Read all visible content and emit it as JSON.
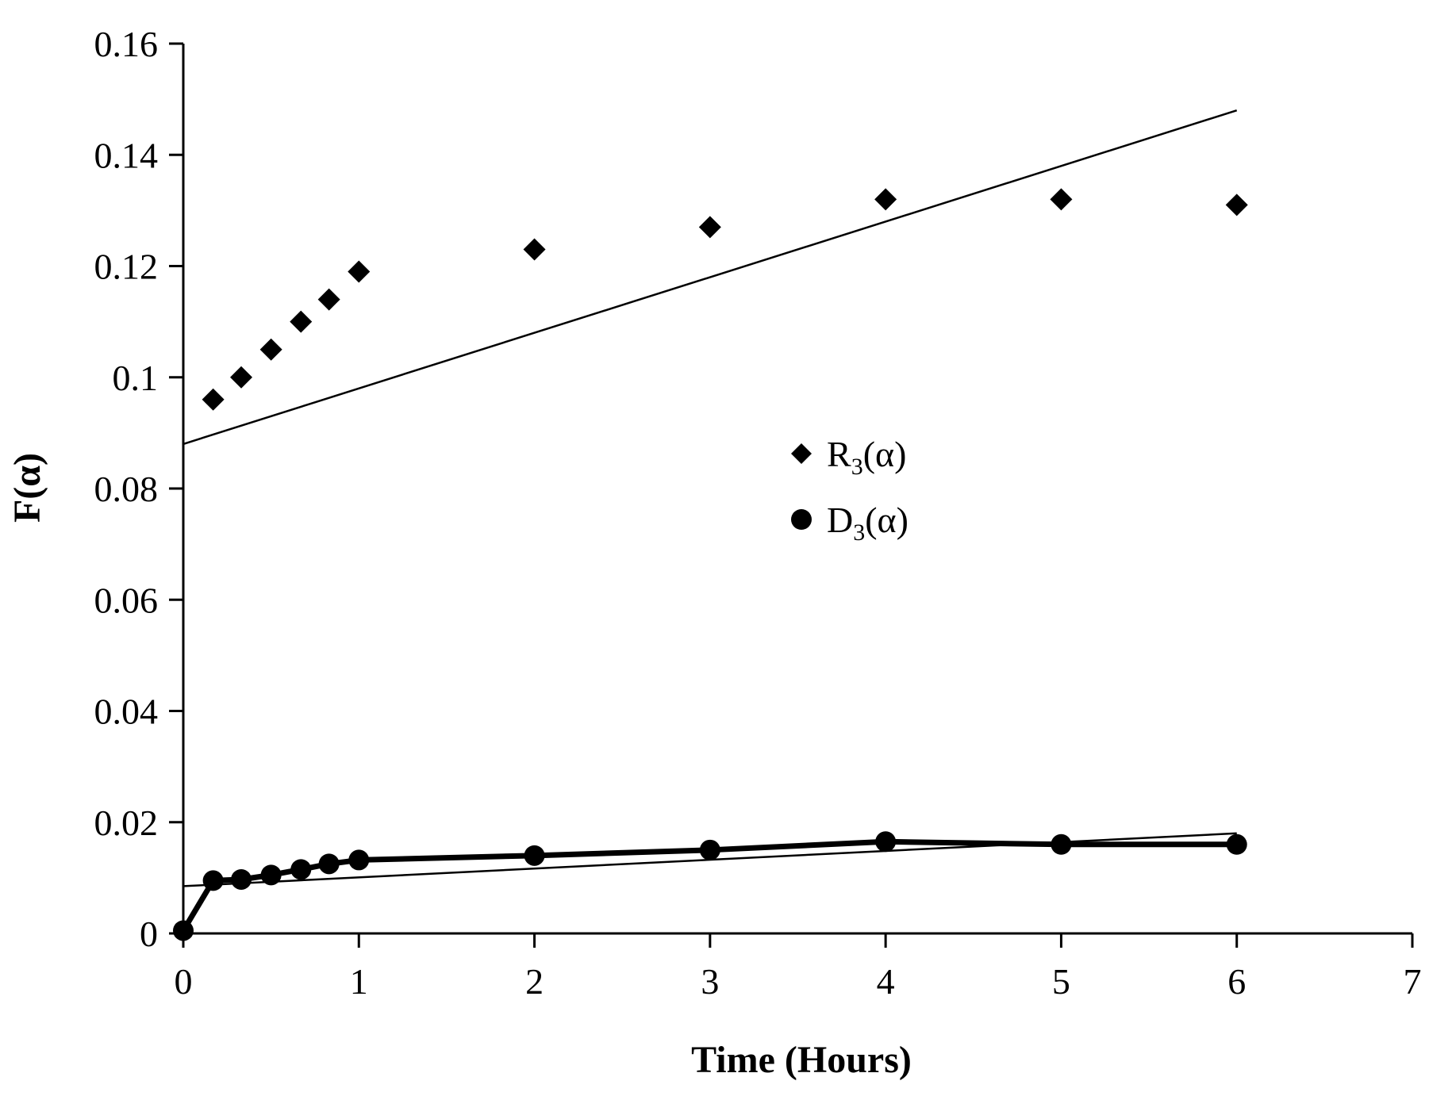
{
  "chart_data": {
    "type": "scatter",
    "title": "",
    "xlabel": "Time (Hours)",
    "ylabel": "F(α)",
    "xlim": [
      0,
      7
    ],
    "ylim": [
      0,
      0.16
    ],
    "xticks": [
      0,
      1,
      2,
      3,
      4,
      5,
      6,
      7
    ],
    "yticks": [
      0,
      0.02,
      0.04,
      0.06,
      0.08,
      0.1,
      0.12,
      0.14,
      0.16
    ],
    "ytick_labels": [
      "0",
      "0.02",
      "0.04",
      "0.06",
      "0.08",
      "0.1",
      "0.12",
      "0.14",
      "0.16"
    ],
    "grid": false,
    "legend_position": "center-right",
    "series": [
      {
        "name": "R3(α)",
        "legend_main": "R",
        "legend_sub": "3",
        "legend_tail": "(α)",
        "marker": "diamond",
        "connected": false,
        "x": [
          0.17,
          0.33,
          0.5,
          0.67,
          0.83,
          1,
          2,
          3,
          4,
          5,
          6
        ],
        "y": [
          0.096,
          0.1,
          0.105,
          0.11,
          0.114,
          0.119,
          0.123,
          0.127,
          0.132,
          0.132,
          0.131
        ],
        "trendline": {
          "x": [
            0,
            6
          ],
          "y": [
            0.088,
            0.148
          ]
        }
      },
      {
        "name": "D3(α)",
        "legend_main": "D",
        "legend_sub": "3",
        "legend_tail": "(α)",
        "marker": "circle",
        "connected": true,
        "x": [
          0,
          0.17,
          0.33,
          0.5,
          0.67,
          0.83,
          1,
          2,
          3,
          4,
          5,
          6
        ],
        "y": [
          0.0005,
          0.0095,
          0.0097,
          0.0105,
          0.0115,
          0.0125,
          0.0132,
          0.014,
          0.015,
          0.0165,
          0.016,
          0.016
        ],
        "trendline": {
          "x": [
            0,
            6
          ],
          "y": [
            0.0085,
            0.018
          ]
        }
      }
    ]
  }
}
